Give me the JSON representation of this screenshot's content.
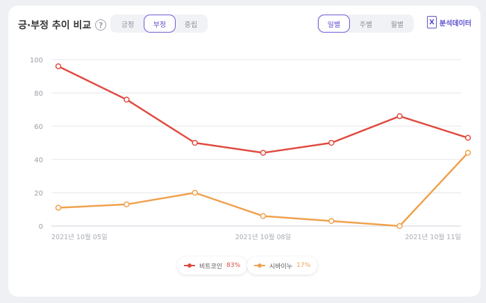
{
  "header": {
    "title": "긍·부정 추이 비교",
    "help_icon": "question-circle-icon"
  },
  "sentiment_filter": {
    "options": [
      "긍정",
      "부정",
      "중립"
    ],
    "selected": "부정"
  },
  "period_filter": {
    "options": [
      "일별",
      "주별",
      "월별"
    ],
    "selected": "일별"
  },
  "export": {
    "label": "분석데이터",
    "icon": "excel-file-icon"
  },
  "colors": {
    "bitcoin": "#e04a3f",
    "shiba": "#f0a04b",
    "accent": "#5a4fcf"
  },
  "chart_data": {
    "type": "line",
    "x": [
      "2021년 10월 05일",
      "",
      "",
      "2021년 10월 08일",
      "",
      "",
      "2021년 10월 11일"
    ],
    "series": [
      {
        "name": "비트코인",
        "values": [
          96,
          76,
          50,
          44,
          50,
          66,
          53
        ]
      },
      {
        "name": "시바이누",
        "values": [
          11,
          13,
          20,
          6,
          3,
          0,
          44
        ]
      }
    ],
    "ylim": [
      0,
      100
    ],
    "yticks": [
      "0",
      "20",
      "40",
      "60",
      "80",
      "100"
    ],
    "grid": true
  },
  "legend": [
    {
      "name": "비트코인",
      "pct": "83%"
    },
    {
      "name": "시바이누",
      "pct": "17%"
    }
  ]
}
